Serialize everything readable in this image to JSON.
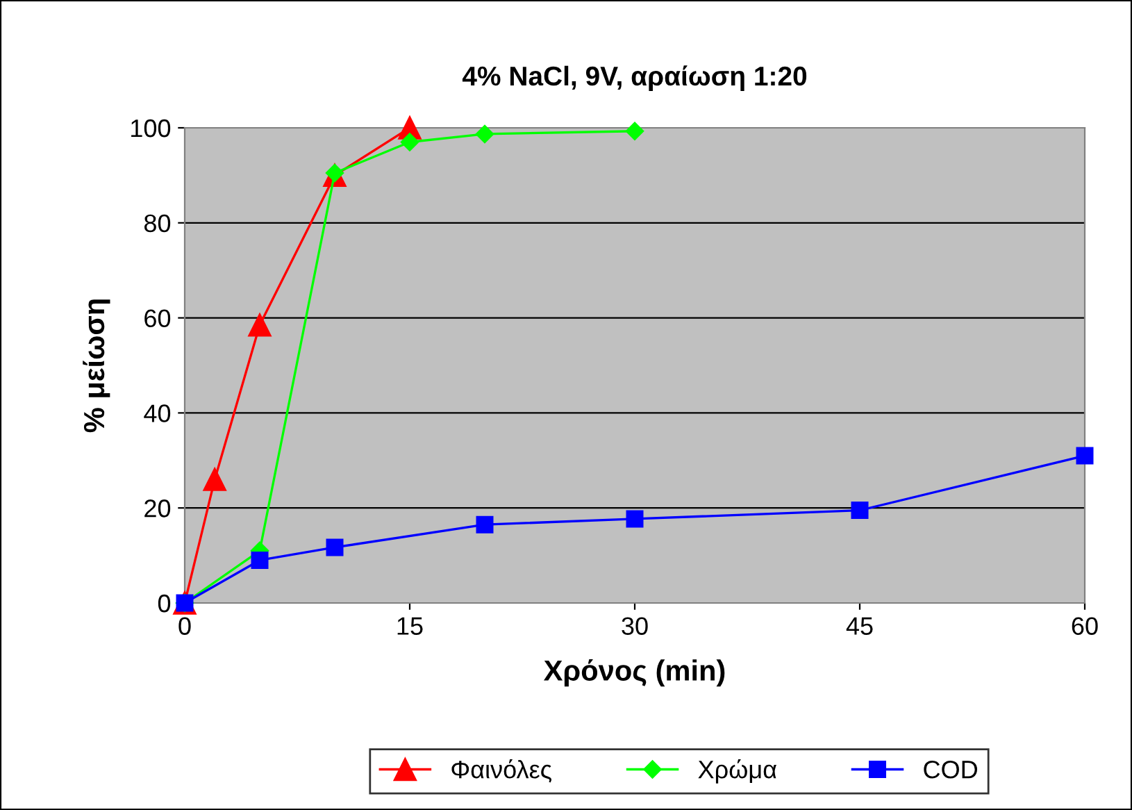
{
  "chart_data": {
    "type": "line",
    "title": "4% NaCl, 9V, αραίωση 1:20",
    "xlabel": "Χρόνος (min)",
    "ylabel": "% μείωση",
    "series": [
      {
        "name": "Φαινόλες",
        "color": "#ff0000",
        "marker": "triangle",
        "x": [
          0,
          2,
          5,
          10,
          15
        ],
        "values": [
          0,
          26,
          58.5,
          90,
          100
        ]
      },
      {
        "name": "Χρώμα",
        "color": "#00ff00",
        "marker": "diamond",
        "x": [
          0,
          5,
          10,
          15,
          20,
          30
        ],
        "values": [
          0,
          11,
          90.5,
          97,
          98.7,
          99.3
        ]
      },
      {
        "name": "COD",
        "color": "#0000ff",
        "marker": "square",
        "x": [
          0,
          5,
          10,
          20,
          30,
          45,
          60
        ],
        "values": [
          0,
          9,
          11.7,
          16.5,
          17.7,
          19.5,
          31
        ]
      }
    ],
    "xlim": [
      0,
      60
    ],
    "xticks": [
      0,
      15,
      30,
      45,
      60
    ],
    "ylim": [
      0,
      100
    ],
    "yticks": [
      0,
      20,
      40,
      60,
      80,
      100
    ],
    "grid": "y",
    "legend": "bottom",
    "line_style": "solid"
  }
}
